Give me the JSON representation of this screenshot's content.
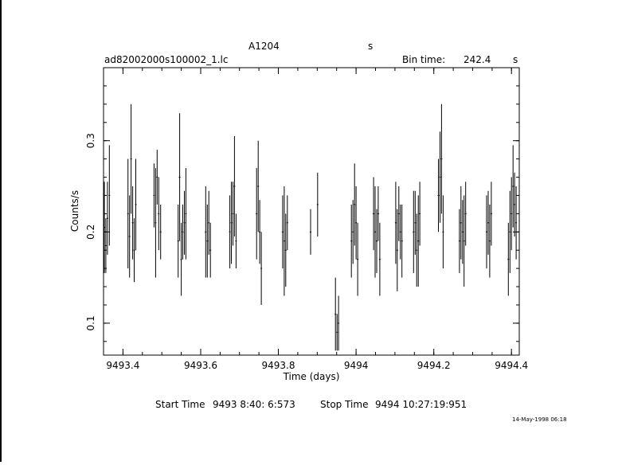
{
  "chart_data": {
    "type": "scatter",
    "title_left": "A1204",
    "title_right": "s",
    "filename": "ad82002000s100002_1.lc",
    "bin_time_label": "Bin time:",
    "bin_time_value": "242.4",
    "bin_time_unit": "s",
    "xlabel": "Time (days)",
    "ylabel": "Counts/s",
    "xlim": [
      9493.35,
      9494.42
    ],
    "ylim": [
      0.065,
      0.38
    ],
    "x_ticks": [
      {
        "value": 9493.4,
        "label": "9493.4"
      },
      {
        "value": 9493.6,
        "label": "9493.6"
      },
      {
        "value": 9493.8,
        "label": "9493.8"
      },
      {
        "value": 9494.0,
        "label": "9494"
      },
      {
        "value": 9494.2,
        "label": "9494.2"
      },
      {
        "value": 9494.4,
        "label": "9494.4"
      }
    ],
    "y_ticks": [
      {
        "value": 0.1,
        "label": "0.1"
      },
      {
        "value": 0.2,
        "label": "0.2"
      },
      {
        "value": 0.3,
        "label": "0.3"
      }
    ],
    "series": [
      {
        "points": [
          [
            9493.352,
            0.205,
            0.05
          ],
          [
            9493.356,
            0.185,
            0.03
          ],
          [
            9493.36,
            0.215,
            0.04
          ],
          [
            9493.365,
            0.24,
            0.055
          ],
          [
            9493.413,
            0.22,
            0.06
          ],
          [
            9493.417,
            0.195,
            0.045
          ],
          [
            9493.421,
            0.28,
            0.06
          ],
          [
            9493.425,
            0.21,
            0.04
          ],
          [
            9493.429,
            0.18,
            0.035
          ],
          [
            9493.433,
            0.23,
            0.05
          ],
          [
            9493.48,
            0.24,
            0.035
          ],
          [
            9493.484,
            0.21,
            0.06
          ],
          [
            9493.488,
            0.26,
            0.03
          ],
          [
            9493.492,
            0.22,
            0.04
          ],
          [
            9493.497,
            0.2,
            0.03
          ],
          [
            9493.542,
            0.19,
            0.04
          ],
          [
            9493.546,
            0.26,
            0.07
          ],
          [
            9493.55,
            0.17,
            0.04
          ],
          [
            9493.554,
            0.2,
            0.03
          ],
          [
            9493.558,
            0.21,
            0.035
          ],
          [
            9493.562,
            0.22,
            0.05
          ],
          [
            9493.613,
            0.2,
            0.05
          ],
          [
            9493.617,
            0.19,
            0.04
          ],
          [
            9493.621,
            0.21,
            0.035
          ],
          [
            9493.625,
            0.18,
            0.03
          ],
          [
            9493.675,
            0.2,
            0.04
          ],
          [
            9493.679,
            0.21,
            0.045
          ],
          [
            9493.683,
            0.22,
            0.035
          ],
          [
            9493.687,
            0.25,
            0.055
          ],
          [
            9493.691,
            0.19,
            0.03
          ],
          [
            9493.744,
            0.22,
            0.05
          ],
          [
            9493.748,
            0.25,
            0.05
          ],
          [
            9493.752,
            0.2,
            0.035
          ],
          [
            9493.756,
            0.16,
            0.04
          ],
          [
            9493.811,
            0.2,
            0.04
          ],
          [
            9493.815,
            0.19,
            0.06
          ],
          [
            9493.819,
            0.18,
            0.04
          ],
          [
            9493.823,
            0.21,
            0.03
          ],
          [
            9493.883,
            0.2,
            0.025
          ],
          [
            9493.901,
            0.23,
            0.035
          ],
          [
            9493.947,
            0.11,
            0.04
          ],
          [
            9493.951,
            0.09,
            0.02
          ],
          [
            9493.955,
            0.1,
            0.03
          ],
          [
            9493.988,
            0.19,
            0.04
          ],
          [
            9493.992,
            0.2,
            0.035
          ],
          [
            9493.996,
            0.23,
            0.045
          ],
          [
            9494.0,
            0.21,
            0.04
          ],
          [
            9494.004,
            0.17,
            0.04
          ],
          [
            9494.045,
            0.22,
            0.04
          ],
          [
            9494.049,
            0.2,
            0.05
          ],
          [
            9494.053,
            0.19,
            0.035
          ],
          [
            9494.057,
            0.22,
            0.03
          ],
          [
            9494.061,
            0.17,
            0.04
          ],
          [
            9494.102,
            0.21,
            0.045
          ],
          [
            9494.106,
            0.18,
            0.045
          ],
          [
            9494.11,
            0.22,
            0.03
          ],
          [
            9494.114,
            0.2,
            0.03
          ],
          [
            9494.118,
            0.19,
            0.04
          ],
          [
            9494.148,
            0.2,
            0.045
          ],
          [
            9494.152,
            0.21,
            0.035
          ],
          [
            9494.156,
            0.18,
            0.04
          ],
          [
            9494.16,
            0.19,
            0.05
          ],
          [
            9494.164,
            0.22,
            0.035
          ],
          [
            9494.212,
            0.24,
            0.04
          ],
          [
            9494.216,
            0.26,
            0.05
          ],
          [
            9494.22,
            0.28,
            0.06
          ],
          [
            9494.224,
            0.2,
            0.04
          ],
          [
            9494.266,
            0.19,
            0.035
          ],
          [
            9494.27,
            0.21,
            0.04
          ],
          [
            9494.274,
            0.2,
            0.035
          ],
          [
            9494.278,
            0.19,
            0.05
          ],
          [
            9494.282,
            0.22,
            0.035
          ],
          [
            9494.336,
            0.2,
            0.04
          ],
          [
            9494.34,
            0.21,
            0.035
          ],
          [
            9494.344,
            0.19,
            0.04
          ],
          [
            9494.348,
            0.22,
            0.035
          ],
          [
            9494.392,
            0.17,
            0.04
          ],
          [
            9494.396,
            0.2,
            0.045
          ],
          [
            9494.4,
            0.22,
            0.04
          ],
          [
            9494.404,
            0.25,
            0.045
          ],
          [
            9494.408,
            0.23,
            0.035
          ],
          [
            9494.412,
            0.21,
            0.04
          ]
        ]
      }
    ],
    "start_time_label": "Start Time",
    "start_time_value": "9493  8:40: 6:573",
    "stop_time_label": "Stop Time",
    "stop_time_value": "9494 10:27:19:951",
    "date_stamp": "14-May-1998 06:18"
  }
}
